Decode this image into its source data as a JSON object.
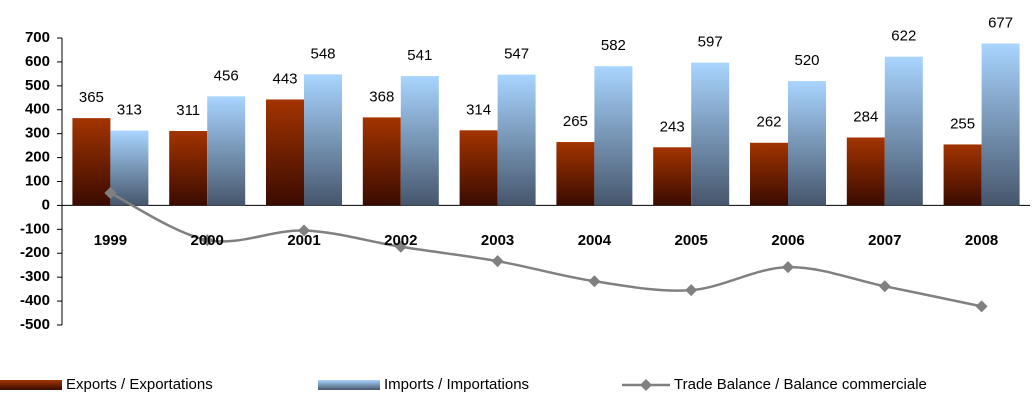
{
  "chart_data": {
    "type": "bar-line",
    "categories": [
      "1999",
      "2000",
      "2001",
      "2002",
      "2003",
      "2004",
      "2005",
      "2006",
      "2007",
      "2008"
    ],
    "series": [
      {
        "name": "Exports / Exportations",
        "type": "bar",
        "color": "#a33400",
        "values": [
          365,
          311,
          443,
          368,
          314,
          265,
          243,
          262,
          284,
          255
        ]
      },
      {
        "name": "Imports / Importations",
        "type": "bar",
        "color": "#a9d5ff",
        "values": [
          313,
          456,
          548,
          541,
          547,
          582,
          597,
          520,
          622,
          677
        ]
      },
      {
        "name": "Trade Balance / Balance commerciale",
        "type": "line",
        "color": "#808080",
        "values": [
          52,
          -145,
          -105,
          -173,
          -233,
          -317,
          -354,
          -258,
          -338,
          -422
        ]
      }
    ],
    "ylim": [
      -500,
      700
    ],
    "yticks": [
      -500,
      -400,
      -300,
      -200,
      -100,
      0,
      100,
      200,
      300,
      400,
      500,
      600,
      700
    ],
    "legend": "bottom"
  }
}
